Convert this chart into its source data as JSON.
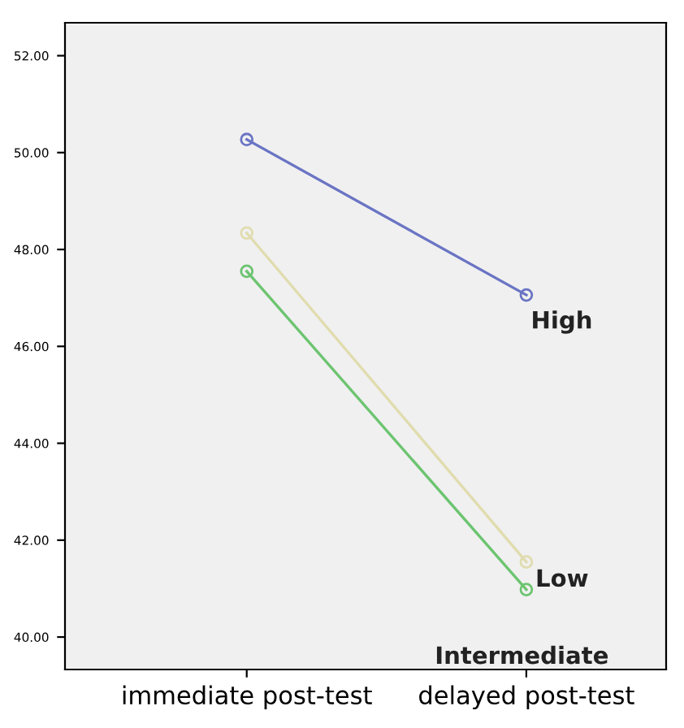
{
  "chart_data": {
    "type": "line",
    "categories": [
      "immediate post-test",
      "delayed post-test"
    ],
    "series": [
      {
        "name": "High",
        "color": "#6a74c4",
        "values": [
          50.27,
          47.06
        ]
      },
      {
        "name": "Low",
        "color": "#e0dcae",
        "values": [
          48.34,
          41.55
        ]
      },
      {
        "name": "Intermediate",
        "color": "#6cc470",
        "values": [
          47.55,
          40.98
        ]
      }
    ],
    "ylim": [
      39.33,
      52.68
    ],
    "yticks": [
      {
        "value": 40,
        "label": "40.00"
      },
      {
        "value": 42,
        "label": "42.00"
      },
      {
        "value": 44,
        "label": "44.00"
      },
      {
        "value": 46,
        "label": "46.00"
      },
      {
        "value": 48,
        "label": "48.00"
      },
      {
        "value": 50,
        "label": "50.00"
      },
      {
        "value": 52,
        "label": "52.00"
      }
    ],
    "marker": "circle",
    "line_style": "solid",
    "grid": false,
    "legend": false
  }
}
